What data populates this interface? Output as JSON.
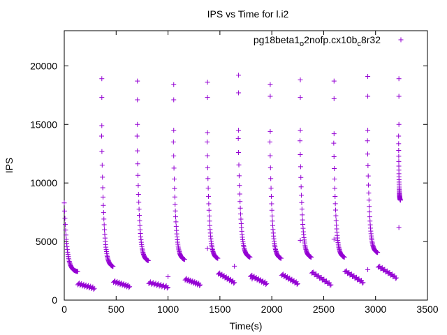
{
  "chart_data": {
    "type": "scatter",
    "title": "IPS vs Time for l.i2",
    "xlabel": "Time(s)",
    "ylabel": "IPS",
    "xlim": [
      0,
      3500
    ],
    "ylim": [
      0,
      23000
    ],
    "x_ticks": [
      0,
      500,
      1000,
      1500,
      2000,
      2500,
      3000,
      3500
    ],
    "y_ticks": [
      0,
      5000,
      10000,
      15000,
      20000
    ],
    "grid": false,
    "legend_position": "top-right",
    "series": [
      {
        "name": "pg18beta1_o2nofp.cx10b_c8r32",
        "color": "#9400d3",
        "marker": "+",
        "cycles": [
          {
            "spike_x": 362,
            "spike_tops": [
              18900,
              17300,
              14900
            ],
            "start_x": 360,
            "start_y": 14000,
            "decay_end_x": 470,
            "decay_end_y": 2800,
            "low_start_x": 475,
            "low_end_x": 630,
            "low_y_start": 1600,
            "low_y_end": 1150
          },
          {
            "spike_x": 705,
            "spike_tops": [
              18700,
              17100,
              15000
            ],
            "start_x": 702,
            "start_y": 14000,
            "decay_end_x": 810,
            "decay_end_y": 3300,
            "low_start_x": 815,
            "low_end_x": 1000,
            "low_y_start": 1500,
            "low_y_end": 1100
          },
          {
            "spike_x": 1055,
            "spike_tops": [
              18400,
              17100,
              14500
            ],
            "start_x": 1052,
            "start_y": 13500,
            "decay_end_x": 1160,
            "decay_end_y": 3400,
            "low_start_x": 1165,
            "low_end_x": 1310,
            "low_y_start": 1800,
            "low_y_end": 1300
          },
          {
            "spike_x": 1380,
            "spike_tops": [
              18600,
              17300,
              14300
            ],
            "start_x": 1377,
            "start_y": 13500,
            "decay_end_x": 1480,
            "decay_end_y": 3500,
            "low_start_x": 1485,
            "low_end_x": 1640,
            "low_y_start": 2300,
            "low_y_end": 1500
          },
          {
            "spike_x": 1680,
            "spike_tops": [
              19200,
              17700,
              14500
            ],
            "start_x": 1677,
            "start_y": 13800,
            "decay_end_x": 1790,
            "decay_end_y": 3600,
            "low_start_x": 1795,
            "low_end_x": 1950,
            "low_y_start": 2100,
            "low_y_end": 1400
          },
          {
            "spike_x": 1985,
            "spike_tops": [
              18400,
              17400,
              14400
            ],
            "start_x": 1982,
            "start_y": 13500,
            "decay_end_x": 2090,
            "decay_end_y": 3500,
            "low_start_x": 2095,
            "low_end_x": 2250,
            "low_y_start": 2200,
            "low_y_end": 1400
          },
          {
            "spike_x": 2275,
            "spike_tops": [
              18800,
              17300,
              14500
            ],
            "start_x": 2272,
            "start_y": 13600,
            "decay_end_x": 2380,
            "decay_end_y": 3600,
            "low_start_x": 2385,
            "low_end_x": 2570,
            "low_y_start": 2400,
            "low_y_end": 1300
          },
          {
            "spike_x": 2600,
            "spike_tops": [
              18700,
              17200,
              14200
            ],
            "start_x": 2597,
            "start_y": 13400,
            "decay_end_x": 2700,
            "decay_end_y": 3600,
            "low_start_x": 2705,
            "low_end_x": 2880,
            "low_y_start": 2500,
            "low_y_end": 1500
          },
          {
            "spike_x": 2925,
            "spike_tops": [
              19100,
              17400,
              14500
            ],
            "start_x": 2922,
            "start_y": 13600,
            "decay_end_x": 3020,
            "decay_end_y": 4000,
            "low_start_x": 3025,
            "low_end_x": 3200,
            "low_y_start": 2900,
            "low_y_end": 1900
          },
          {
            "spike_x": 3225,
            "spike_tops": [
              18900,
              17400,
              15000
            ],
            "start_x": 3222,
            "start_y": 14000,
            "decay_end_x": 3240,
            "decay_end_y": 8500,
            "low_start_x": 0,
            "low_end_x": 0,
            "low_y_start": 0,
            "low_y_end": 0
          }
        ],
        "initial_segment": {
          "start_x": 0,
          "start_y": 8300,
          "decay_end_x": 130,
          "decay_end_y": 2400,
          "low_start_x": 130,
          "low_end_x": 290,
          "low_y_start": 1400,
          "low_y_end": 1000
        },
        "outliers": [
          [
            3225,
            6200
          ],
          [
            1380,
            4400
          ],
          [
            2275,
            5100
          ],
          [
            2600,
            5200
          ],
          [
            2925,
            2600
          ],
          [
            1640,
            2900
          ],
          [
            1000,
            2000
          ],
          [
            1810,
            1800
          ]
        ]
      }
    ]
  }
}
